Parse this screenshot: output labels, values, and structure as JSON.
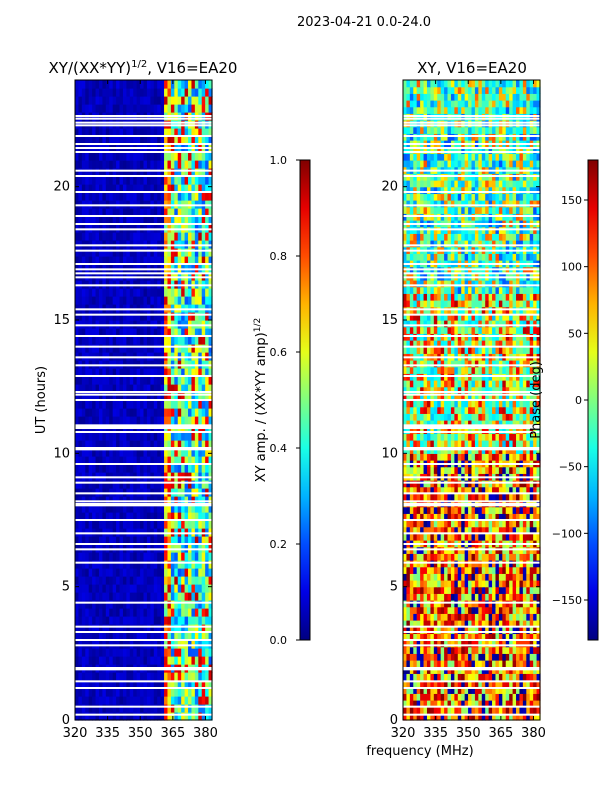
{
  "chart_data": {
    "type": "heatmap",
    "suptitle": "2023-04-21 0.0-24.0",
    "shared_xlabel": "frequency (MHz)",
    "panels": [
      {
        "id": "amp",
        "title_main": "XY/(XX*YY)",
        "title_exp": "1/2",
        "title_rest": ", V16=EA20",
        "xlim": [
          320,
          383
        ],
        "ylim": [
          0,
          24
        ],
        "xticks": [
          320,
          335,
          350,
          365,
          380
        ],
        "yticks": [
          0,
          5,
          10,
          15,
          20
        ],
        "ylabel": "UT (hours)",
        "colorbar": {
          "label_main": "XY amp. / (XX*YY amp)",
          "label_exp": "1/2",
          "range": [
            0.0,
            1.0
          ],
          "ticks": [
            "0.0",
            "0.2",
            "0.4",
            "0.6",
            "0.8",
            "1.0"
          ],
          "tick_values": [
            0.0,
            0.2,
            0.4,
            0.6,
            0.8,
            1.0
          ]
        }
      },
      {
        "id": "phase",
        "title_main": "XY, V16=EA20",
        "xlim": [
          320,
          383
        ],
        "ylim": [
          0,
          24
        ],
        "xticks": [
          320,
          335,
          350,
          365,
          380
        ],
        "yticks": [
          0,
          5,
          10,
          15,
          20
        ],
        "colorbar": {
          "label": "Phase (deg)",
          "range": [
            -180,
            180
          ],
          "ticks": [
            "−150",
            "−100",
            "−50",
            "0",
            "50",
            "100",
            "150"
          ],
          "tick_values": [
            -150,
            -100,
            -50,
            0,
            50,
            100,
            150
          ]
        }
      }
    ],
    "flagged_ut_hours": [
      0.2,
      0.5,
      1.2,
      1.45,
      1.9,
      1.95,
      2.8,
      3.0,
      3.3,
      3.5,
      4.4,
      5.9,
      6.4,
      6.6,
      7.0,
      7.5,
      8.05,
      8.1,
      8.2,
      8.5,
      8.9,
      9.1,
      9.6,
      10.15,
      10.2,
      10.8,
      10.95,
      11.0,
      11.05,
      12.0,
      12.2,
      12.3,
      12.9,
      13.3,
      13.6,
      14.0,
      14.4,
      14.8,
      15.2,
      15.4,
      16.3,
      16.6,
      16.75,
      16.9,
      17.1,
      17.6,
      17.8,
      18.4,
      18.6,
      18.9,
      19.3,
      19.8,
      20.4,
      20.6,
      21.3,
      21.45,
      21.6,
      21.9,
      22.3,
      22.4,
      22.55,
      22.65
    ]
  }
}
